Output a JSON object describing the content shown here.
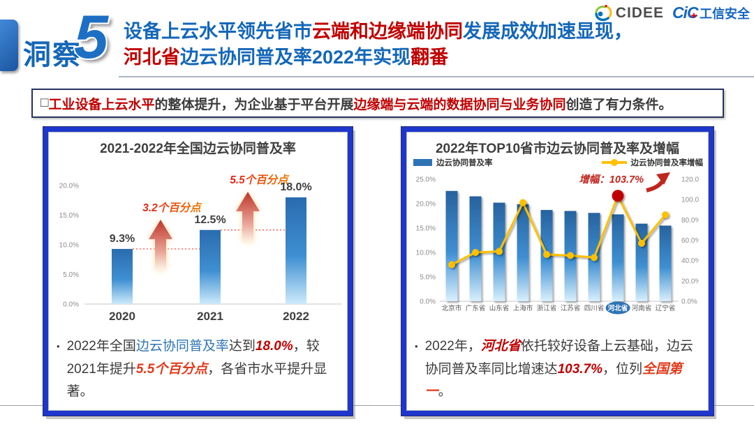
{
  "colors": {
    "dark": "#3B3B3B",
    "red": "#C00000",
    "blue": "#1467B8",
    "linkblue": "#2E75B5",
    "orangered": "#E23A1B",
    "white": "#FFFFFF"
  },
  "header": {
    "tag_label": "洞察",
    "tag_number": "5",
    "title_line1": [
      {
        "t": "设备上云水平领先省市",
        "c": "blue"
      },
      {
        "t": "云端和边缘端协同",
        "c": "red"
      },
      {
        "t": "发展成效加速显现，",
        "c": "blue"
      }
    ],
    "title_line2": [
      {
        "t": "河北省",
        "c": "red"
      },
      {
        "t": "边云协同普及率2022年实现",
        "c": "blue"
      },
      {
        "t": "翻番",
        "c": "red"
      }
    ],
    "logo_cidee": "CIDEE",
    "logo_cic": "CiC",
    "logo_cic_mark": "✚",
    "logo_cic_suffix": "工信安全"
  },
  "banner": {
    "segments": [
      {
        "t": "□",
        "c": "dark"
      },
      {
        "t": "工业设备上云水平",
        "c": "red"
      },
      {
        "t": "的整体提升，为企业基于平台开展",
        "c": "dark"
      },
      {
        "t": "边缘端与云端的数据协同与业务协同",
        "c": "red"
      },
      {
        "t": "创造了有力条件。",
        "c": "dark"
      }
    ]
  },
  "left_panel": {
    "bullet": [
      {
        "t": "2022年全国",
        "c": "dark"
      },
      {
        "t": "边云协同普及率",
        "c": "linkblue"
      },
      {
        "t": "达到",
        "c": "dark"
      },
      {
        "t": "18.0%",
        "c": "red",
        "i": true
      },
      {
        "t": "，较2021年提升",
        "c": "dark"
      },
      {
        "t": "5.5个百分点",
        "c": "orangered",
        "i": true
      },
      {
        "t": "，各省市水平提升显著。",
        "c": "dark"
      }
    ]
  },
  "right_panel": {
    "bullet": [
      {
        "t": "2022年，",
        "c": "dark"
      },
      {
        "t": "河北省",
        "c": "red",
        "i": true
      },
      {
        "t": "依托较好设备上云基础，边云协同普及率同比增速达",
        "c": "dark"
      },
      {
        "t": "103.7%",
        "c": "red",
        "i": true
      },
      {
        "t": "，位列",
        "c": "dark"
      },
      {
        "t": "全国第一",
        "c": "orangered",
        "i": true
      },
      {
        "t": "。",
        "c": "dark"
      }
    ]
  },
  "chart_data": [
    {
      "type": "bar",
      "title": "2021-2022年全国边云协同普及率",
      "categories": [
        "2020",
        "2021",
        "2022"
      ],
      "values": [
        9.3,
        12.5,
        18.0
      ],
      "value_labels": [
        "9.3%",
        "12.5%",
        "18.0%"
      ],
      "yticks": [
        "0.0%",
        "5.0%",
        "10.0%",
        "15.0%",
        "20.0%"
      ],
      "ylim": [
        0,
        20
      ],
      "grid": false,
      "annotations": [
        {
          "text": "3.2个百分点",
          "between": [
            0,
            1
          ]
        },
        {
          "text": "5.5个百分点",
          "between": [
            1,
            2
          ]
        }
      ],
      "bar_color_top": "#2A6CAE",
      "bar_color_mid": "#3E8FD2",
      "bar_color_bottom": "#CDEAFB"
    },
    {
      "type": "bar+line",
      "title": "2022年TOP10省市边云协同普及率及增幅",
      "categories": [
        "北京市",
        "广东省",
        "山东省",
        "上海市",
        "浙江省",
        "江苏省",
        "四川省",
        "河北省",
        "河南省",
        "辽宁省"
      ],
      "series": [
        {
          "name": "边云协同普及率",
          "type": "bar",
          "axis": "left",
          "values": [
            22.6,
            21.5,
            20.2,
            19.9,
            18.7,
            18.5,
            18.1,
            17.8,
            15.9,
            15.5
          ]
        },
        {
          "name": "边云协同普及率增幅",
          "type": "line",
          "axis": "right",
          "values": [
            36,
            48,
            49,
            97,
            46,
            45,
            43,
            103.7,
            57,
            85
          ]
        }
      ],
      "left_ylim": [
        0,
        25
      ],
      "right_ylim": [
        0,
        120
      ],
      "left_yticks": [
        "0.0%",
        "5.0%",
        "10.0%",
        "15.0%",
        "20.0%",
        "25.0%"
      ],
      "right_yticks": [
        "0.0%",
        "20.0%",
        "40.0%",
        "60.0%",
        "80.0%",
        "100.0%",
        "120.0%"
      ],
      "legend_position": "top",
      "highlight_index": 7,
      "annotation": "增幅：103.7%",
      "bar_color": "#2E74B5",
      "line_color": "#FFC000",
      "highlight_dot_color": "#C00000"
    }
  ]
}
